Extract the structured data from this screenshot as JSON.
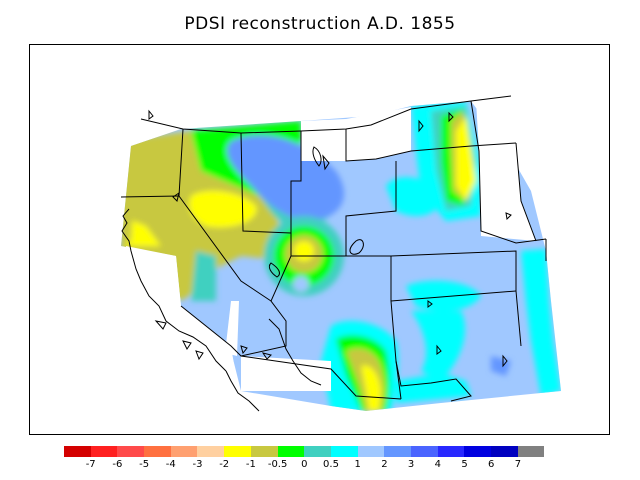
{
  "title": "PDSI reconstruction A.D. 1855",
  "legend": {
    "colors": [
      "#d40000",
      "#ff2020",
      "#ff4a4a",
      "#ff7040",
      "#ffa070",
      "#ffd0a0",
      "#ffff00",
      "#c8c840",
      "#00ff00",
      "#40d0c0",
      "#00ffff",
      "#a0c8ff",
      "#6496ff",
      "#4a64ff",
      "#2828ff",
      "#0000e0",
      "#0000c0",
      "#808080"
    ],
    "labels": [
      "-7",
      "-6",
      "-5",
      "-4",
      "-3",
      "-2",
      "-1",
      "-0.5",
      "0",
      "0.5",
      "1",
      "2",
      "3",
      "4",
      "5",
      "6",
      "7"
    ]
  }
}
